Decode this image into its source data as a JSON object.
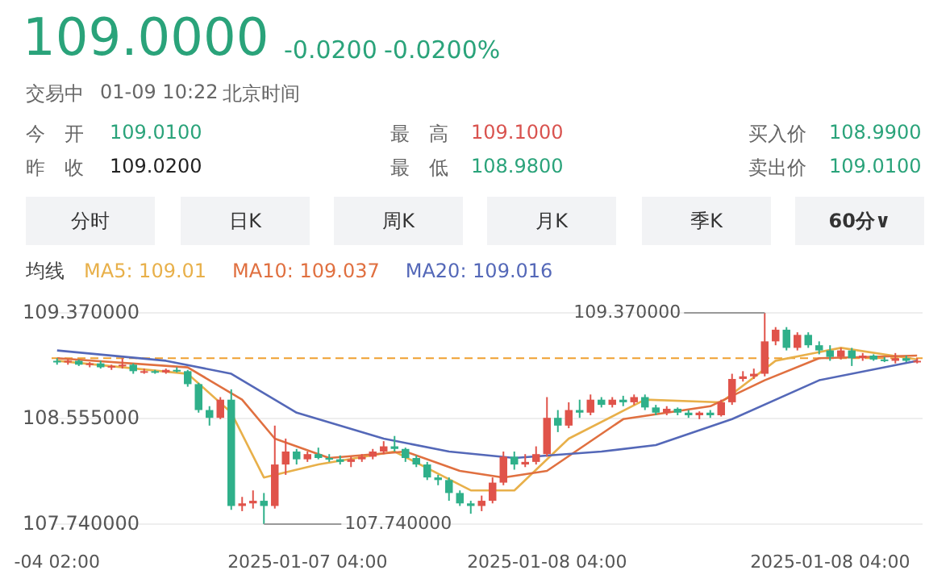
{
  "chart_data": [
    {
      "type": "other",
      "title": "109.0000",
      "annotations": [
        "-0.0200",
        "-0.0200%",
        "交易中",
        "01-09 10:22",
        "北京时间",
        "今　开",
        "109.0100",
        "最　高",
        "109.1000",
        "买入价",
        "108.9900",
        "昨　收",
        "109.0200",
        "最　低",
        "108.9800",
        "卖出价",
        "109.0100",
        "分时",
        "日K",
        "周K",
        "月K",
        "季K",
        "60分∨"
      ]
    },
    {
      "type": "candlestick",
      "legend_title": "均线",
      "legend": "top left",
      "grid": "y",
      "categories": [
        "-04 02:00",
        null,
        null,
        null,
        null,
        null,
        null,
        null,
        null,
        null,
        null,
        null,
        null,
        null,
        null,
        null,
        null,
        null,
        null,
        null,
        null,
        null,
        null,
        "2025-01-07 04:00",
        null,
        null,
        null,
        null,
        null,
        null,
        null,
        null,
        null,
        null,
        null,
        null,
        null,
        null,
        null,
        null,
        null,
        null,
        null,
        null,
        null,
        "2025-01-08 04:00",
        null,
        null,
        null,
        null,
        null,
        null,
        null,
        null,
        null,
        null,
        null,
        null,
        null,
        null,
        null,
        null,
        null,
        null,
        null,
        null,
        null,
        null,
        null,
        null,
        null,
        "2025-01-08 04:00",
        null,
        null,
        null,
        null,
        null,
        null,
        null,
        null
      ],
      "ylim": [
        107.74,
        109.37
      ],
      "yticks": [
        {
          "value": 109.37,
          "label": "109.370000"
        },
        {
          "value": 108.555,
          "label": "108.555000"
        },
        {
          "value": 107.74,
          "label": "107.740000"
        }
      ],
      "ref_lines": [
        {
          "axis": "y",
          "value": 109.02,
          "color": "#f0a030",
          "line_style": "dashed"
        }
      ],
      "annotations": [
        "109.370000",
        "107.740000"
      ],
      "ohlc": [
        [
          109.0,
          109.02,
          108.97,
          108.99
        ],
        [
          108.99,
          109.01,
          108.97,
          109.0
        ],
        [
          109.0,
          109.01,
          108.96,
          108.97
        ],
        [
          108.97,
          108.99,
          108.95,
          108.98
        ],
        [
          108.98,
          109.0,
          108.94,
          108.95
        ],
        [
          108.95,
          108.97,
          108.93,
          108.96
        ],
        [
          108.96,
          109.02,
          108.94,
          108.97
        ],
        [
          108.97,
          108.98,
          108.9,
          108.92
        ],
        [
          108.92,
          108.94,
          108.9,
          108.92
        ],
        [
          108.92,
          108.93,
          108.9,
          108.91
        ],
        [
          108.91,
          108.94,
          108.9,
          108.93
        ],
        [
          108.93,
          108.95,
          108.91,
          108.92
        ],
        [
          108.92,
          108.93,
          108.8,
          108.82
        ],
        [
          108.82,
          108.83,
          108.6,
          108.62
        ],
        [
          108.62,
          108.65,
          108.5,
          108.56
        ],
        [
          108.56,
          108.72,
          108.55,
          108.7
        ],
        [
          108.7,
          108.78,
          107.85,
          107.88
        ],
        [
          107.88,
          107.95,
          107.84,
          107.9
        ],
        [
          107.9,
          108.0,
          107.86,
          107.92
        ],
        [
          107.92,
          107.98,
          107.74,
          107.88
        ],
        [
          107.88,
          108.5,
          107.86,
          108.2
        ],
        [
          108.2,
          108.4,
          108.12,
          108.3
        ],
        [
          108.3,
          108.32,
          108.2,
          108.24
        ],
        [
          108.24,
          108.3,
          108.22,
          108.28
        ],
        [
          108.28,
          108.33,
          108.24,
          108.25
        ],
        [
          108.25,
          108.28,
          108.22,
          108.24
        ],
        [
          108.24,
          108.27,
          108.2,
          108.22
        ],
        [
          108.22,
          108.26,
          108.18,
          108.24
        ],
        [
          108.24,
          108.28,
          108.22,
          108.26
        ],
        [
          108.26,
          108.32,
          108.24,
          108.3
        ],
        [
          108.3,
          108.38,
          108.28,
          108.34
        ],
        [
          108.34,
          108.42,
          108.3,
          108.32
        ],
        [
          108.32,
          108.33,
          108.22,
          108.25
        ],
        [
          108.25,
          108.27,
          108.18,
          108.2
        ],
        [
          108.2,
          108.22,
          108.08,
          108.1
        ],
        [
          108.1,
          108.12,
          108.04,
          108.08
        ],
        [
          108.08,
          108.1,
          107.92,
          107.98
        ],
        [
          107.98,
          108.0,
          107.88,
          107.9
        ],
        [
          107.9,
          107.92,
          107.82,
          107.88
        ],
        [
          107.88,
          107.96,
          107.84,
          107.92
        ],
        [
          107.92,
          108.1,
          107.9,
          108.06
        ],
        [
          108.06,
          108.3,
          108.04,
          108.26
        ],
        [
          108.26,
          108.3,
          108.16,
          108.2
        ],
        [
          108.2,
          108.28,
          108.18,
          108.22
        ],
        [
          108.22,
          108.34,
          108.2,
          108.28
        ],
        [
          108.28,
          108.72,
          108.26,
          108.56
        ],
        [
          108.56,
          108.62,
          108.45,
          108.5
        ],
        [
          108.5,
          108.68,
          108.48,
          108.62
        ],
        [
          108.62,
          108.7,
          108.56,
          108.6
        ],
        [
          108.6,
          108.74,
          108.58,
          108.7
        ],
        [
          108.7,
          108.72,
          108.64,
          108.66
        ],
        [
          108.66,
          108.72,
          108.64,
          108.7
        ],
        [
          108.7,
          108.73,
          108.65,
          108.68
        ],
        [
          108.68,
          108.74,
          108.66,
          108.72
        ],
        [
          108.72,
          108.74,
          108.62,
          108.64
        ],
        [
          108.64,
          108.66,
          108.58,
          108.6
        ],
        [
          108.6,
          108.65,
          108.58,
          108.63
        ],
        [
          108.63,
          108.64,
          108.58,
          108.6
        ],
        [
          108.6,
          108.62,
          108.56,
          108.58
        ],
        [
          108.58,
          108.61,
          108.55,
          108.6
        ],
        [
          108.6,
          108.62,
          108.56,
          108.58
        ],
        [
          108.58,
          108.7,
          108.57,
          108.68
        ],
        [
          108.68,
          108.9,
          108.66,
          108.86
        ],
        [
          108.86,
          108.92,
          108.84,
          108.88
        ],
        [
          108.88,
          108.94,
          108.86,
          108.9
        ],
        [
          108.9,
          109.37,
          108.88,
          109.15
        ],
        [
          109.15,
          109.26,
          109.12,
          109.24
        ],
        [
          109.24,
          109.26,
          109.08,
          109.1
        ],
        [
          109.1,
          109.22,
          109.08,
          109.2
        ],
        [
          109.2,
          109.22,
          109.1,
          109.12
        ],
        [
          109.12,
          109.15,
          109.05,
          109.08
        ],
        [
          109.08,
          109.12,
          109.0,
          109.03
        ],
        [
          109.03,
          109.1,
          109.01,
          109.08
        ],
        [
          109.08,
          109.1,
          108.96,
          109.02
        ],
        [
          109.02,
          109.06,
          109.0,
          109.04
        ],
        [
          109.04,
          109.05,
          109.0,
          109.01
        ],
        [
          109.01,
          109.03,
          108.99,
          109.0
        ],
        [
          109.0,
          109.06,
          108.98,
          109.02
        ],
        [
          109.02,
          109.04,
          108.99,
          109.0
        ],
        [
          109.0,
          109.02,
          108.98,
          109.0
        ]
      ],
      "series": [
        {
          "name": "MA5: 109.01",
          "type": "line",
          "color": "#e8b04a",
          "values": [
            109.0,
            null,
            null,
            null,
            null,
            null,
            null,
            null,
            null,
            null,
            null,
            null,
            108.9,
            null,
            null,
            null,
            108.6,
            null,
            null,
            108.1,
            null,
            null,
            null,
            null,
            108.2,
            null,
            null,
            null,
            null,
            null,
            null,
            108.3,
            null,
            null,
            null,
            null,
            null,
            null,
            108.0,
            null,
            null,
            null,
            108.0,
            null,
            null,
            null,
            null,
            108.4,
            null,
            null,
            null,
            null,
            null,
            null,
            108.7,
            null,
            null,
            null,
            null,
            null,
            null,
            108.68,
            null,
            null,
            null,
            null,
            109.0,
            null,
            null,
            null,
            null,
            null,
            109.1,
            null,
            null,
            null,
            null,
            null,
            null,
            109.01
          ]
        },
        {
          "name": "MA10: 109.037",
          "type": "line",
          "color": "#e07040",
          "values": [
            109.02,
            null,
            null,
            null,
            null,
            null,
            null,
            null,
            null,
            null,
            null,
            null,
            108.95,
            null,
            null,
            null,
            null,
            108.7,
            null,
            null,
            108.4,
            null,
            null,
            null,
            null,
            108.25,
            null,
            null,
            null,
            null,
            null,
            null,
            108.3,
            null,
            null,
            null,
            null,
            108.15,
            null,
            null,
            null,
            108.1,
            null,
            null,
            null,
            108.15,
            null,
            null,
            null,
            null,
            null,
            null,
            108.55,
            null,
            null,
            null,
            null,
            null,
            null,
            null,
            108.65,
            null,
            null,
            null,
            null,
            108.85,
            null,
            null,
            null,
            null,
            109.02,
            null,
            null,
            null,
            null,
            null,
            null,
            null,
            null,
            109.04
          ]
        },
        {
          "name": "MA20: 109.016",
          "type": "line",
          "color": "#5468b8",
          "values": [
            109.08,
            null,
            null,
            null,
            null,
            null,
            null,
            null,
            null,
            null,
            109.0,
            null,
            null,
            null,
            null,
            null,
            108.9,
            null,
            null,
            null,
            null,
            null,
            108.6,
            null,
            null,
            null,
            null,
            null,
            null,
            null,
            108.4,
            null,
            null,
            null,
            null,
            null,
            108.3,
            null,
            null,
            null,
            null,
            null,
            108.25,
            null,
            null,
            null,
            null,
            null,
            null,
            null,
            108.3,
            null,
            null,
            null,
            null,
            108.35,
            null,
            null,
            null,
            null,
            null,
            null,
            108.55,
            null,
            null,
            null,
            null,
            null,
            null,
            null,
            108.85,
            null,
            null,
            null,
            null,
            null,
            null,
            null,
            null,
            109.0
          ]
        }
      ]
    }
  ]
}
